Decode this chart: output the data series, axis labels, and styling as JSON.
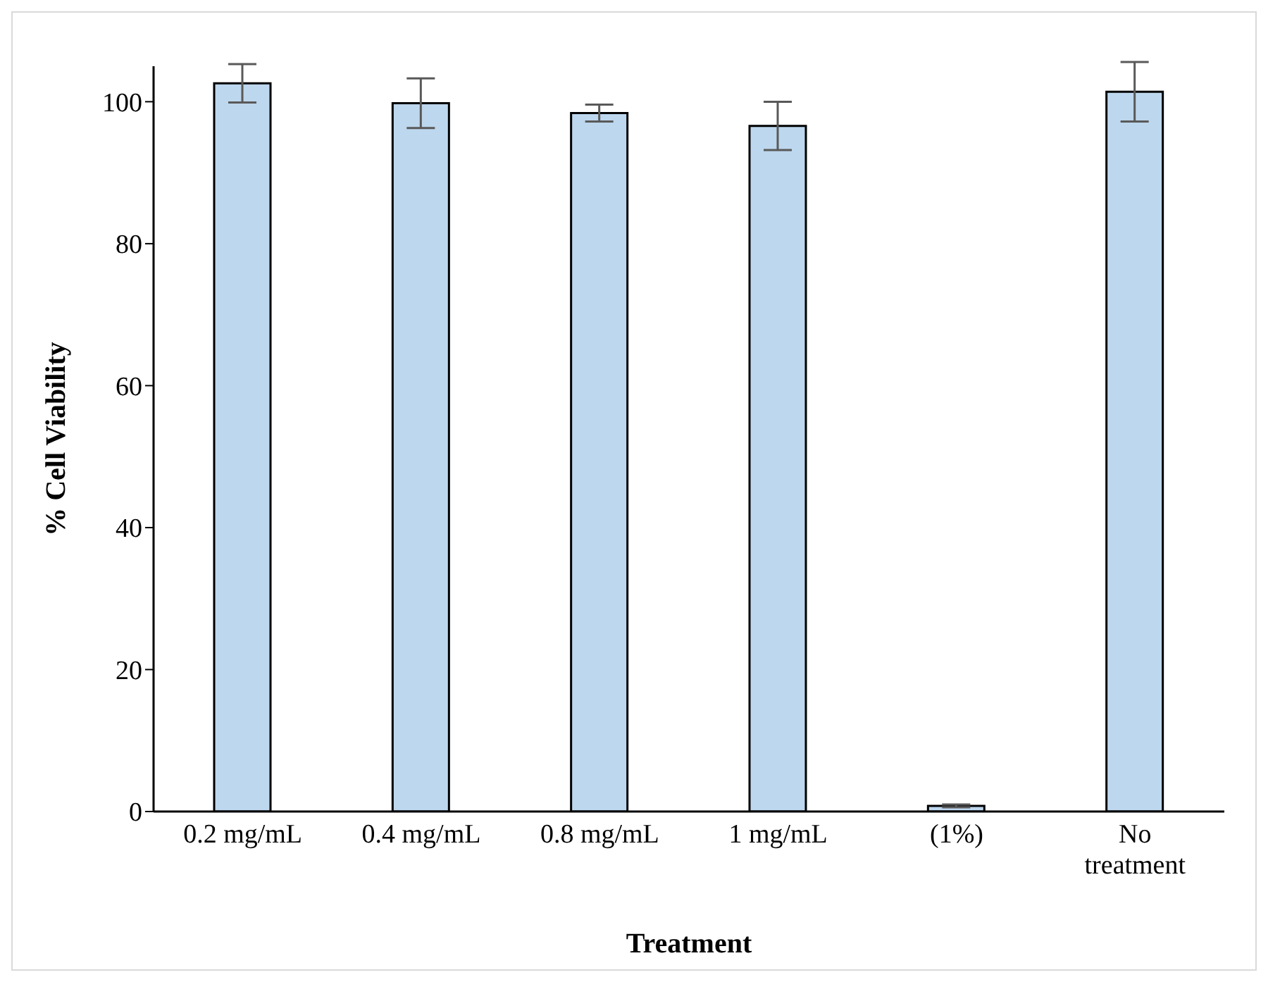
{
  "chart_data": {
    "type": "bar",
    "xlabel": "Treatment",
    "ylabel": "% Cell  Viability",
    "categories": [
      "0.2 mg/mL",
      "0.4 mg/mL",
      "0.8 mg/mL",
      "1 mg/mL",
      "(1%)",
      "No treatment"
    ],
    "values": [
      102.6,
      99.8,
      98.4,
      96.6,
      0.8,
      101.4
    ],
    "errors": [
      2.7,
      3.5,
      1.2,
      3.4,
      0.2,
      4.2
    ],
    "color": "#bdd7ee",
    "ylim": [
      0,
      105
    ],
    "yticks": [
      0,
      20,
      40,
      60,
      80,
      100
    ],
    "grid": false
  }
}
